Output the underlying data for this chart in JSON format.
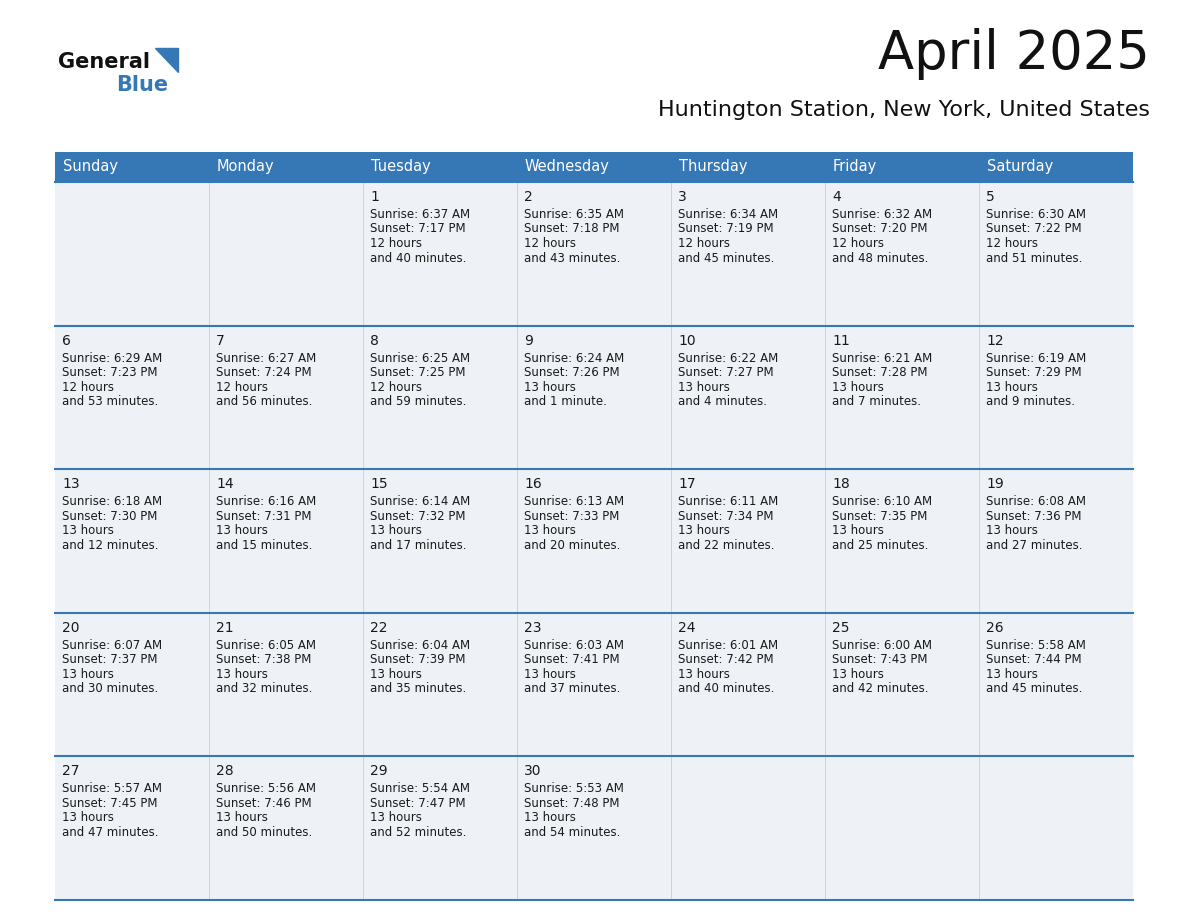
{
  "title": "April 2025",
  "subtitle": "Huntington Station, New York, United States",
  "header_color": "#3578b5",
  "header_text_color": "#ffffff",
  "cell_bg_even": "#eef2f7",
  "cell_bg_odd": "#ffffff",
  "border_color": "#3578b5",
  "text_color": "#1a1a1a",
  "day_names": [
    "Sunday",
    "Monday",
    "Tuesday",
    "Wednesday",
    "Thursday",
    "Friday",
    "Saturday"
  ],
  "weeks": [
    [
      {
        "day": "",
        "sunrise": "",
        "sunset": "",
        "daylight": ""
      },
      {
        "day": "",
        "sunrise": "",
        "sunset": "",
        "daylight": ""
      },
      {
        "day": "1",
        "sunrise": "6:37 AM",
        "sunset": "7:17 PM",
        "daylight": "12 hours\nand 40 minutes."
      },
      {
        "day": "2",
        "sunrise": "6:35 AM",
        "sunset": "7:18 PM",
        "daylight": "12 hours\nand 43 minutes."
      },
      {
        "day": "3",
        "sunrise": "6:34 AM",
        "sunset": "7:19 PM",
        "daylight": "12 hours\nand 45 minutes."
      },
      {
        "day": "4",
        "sunrise": "6:32 AM",
        "sunset": "7:20 PM",
        "daylight": "12 hours\nand 48 minutes."
      },
      {
        "day": "5",
        "sunrise": "6:30 AM",
        "sunset": "7:22 PM",
        "daylight": "12 hours\nand 51 minutes."
      }
    ],
    [
      {
        "day": "6",
        "sunrise": "6:29 AM",
        "sunset": "7:23 PM",
        "daylight": "12 hours\nand 53 minutes."
      },
      {
        "day": "7",
        "sunrise": "6:27 AM",
        "sunset": "7:24 PM",
        "daylight": "12 hours\nand 56 minutes."
      },
      {
        "day": "8",
        "sunrise": "6:25 AM",
        "sunset": "7:25 PM",
        "daylight": "12 hours\nand 59 minutes."
      },
      {
        "day": "9",
        "sunrise": "6:24 AM",
        "sunset": "7:26 PM",
        "daylight": "13 hours\nand 1 minute."
      },
      {
        "day": "10",
        "sunrise": "6:22 AM",
        "sunset": "7:27 PM",
        "daylight": "13 hours\nand 4 minutes."
      },
      {
        "day": "11",
        "sunrise": "6:21 AM",
        "sunset": "7:28 PM",
        "daylight": "13 hours\nand 7 minutes."
      },
      {
        "day": "12",
        "sunrise": "6:19 AM",
        "sunset": "7:29 PM",
        "daylight": "13 hours\nand 9 minutes."
      }
    ],
    [
      {
        "day": "13",
        "sunrise": "6:18 AM",
        "sunset": "7:30 PM",
        "daylight": "13 hours\nand 12 minutes."
      },
      {
        "day": "14",
        "sunrise": "6:16 AM",
        "sunset": "7:31 PM",
        "daylight": "13 hours\nand 15 minutes."
      },
      {
        "day": "15",
        "sunrise": "6:14 AM",
        "sunset": "7:32 PM",
        "daylight": "13 hours\nand 17 minutes."
      },
      {
        "day": "16",
        "sunrise": "6:13 AM",
        "sunset": "7:33 PM",
        "daylight": "13 hours\nand 20 minutes."
      },
      {
        "day": "17",
        "sunrise": "6:11 AM",
        "sunset": "7:34 PM",
        "daylight": "13 hours\nand 22 minutes."
      },
      {
        "day": "18",
        "sunrise": "6:10 AM",
        "sunset": "7:35 PM",
        "daylight": "13 hours\nand 25 minutes."
      },
      {
        "day": "19",
        "sunrise": "6:08 AM",
        "sunset": "7:36 PM",
        "daylight": "13 hours\nand 27 minutes."
      }
    ],
    [
      {
        "day": "20",
        "sunrise": "6:07 AM",
        "sunset": "7:37 PM",
        "daylight": "13 hours\nand 30 minutes."
      },
      {
        "day": "21",
        "sunrise": "6:05 AM",
        "sunset": "7:38 PM",
        "daylight": "13 hours\nand 32 minutes."
      },
      {
        "day": "22",
        "sunrise": "6:04 AM",
        "sunset": "7:39 PM",
        "daylight": "13 hours\nand 35 minutes."
      },
      {
        "day": "23",
        "sunrise": "6:03 AM",
        "sunset": "7:41 PM",
        "daylight": "13 hours\nand 37 minutes."
      },
      {
        "day": "24",
        "sunrise": "6:01 AM",
        "sunset": "7:42 PM",
        "daylight": "13 hours\nand 40 minutes."
      },
      {
        "day": "25",
        "sunrise": "6:00 AM",
        "sunset": "7:43 PM",
        "daylight": "13 hours\nand 42 minutes."
      },
      {
        "day": "26",
        "sunrise": "5:58 AM",
        "sunset": "7:44 PM",
        "daylight": "13 hours\nand 45 minutes."
      }
    ],
    [
      {
        "day": "27",
        "sunrise": "5:57 AM",
        "sunset": "7:45 PM",
        "daylight": "13 hours\nand 47 minutes."
      },
      {
        "day": "28",
        "sunrise": "5:56 AM",
        "sunset": "7:46 PM",
        "daylight": "13 hours\nand 50 minutes."
      },
      {
        "day": "29",
        "sunrise": "5:54 AM",
        "sunset": "7:47 PM",
        "daylight": "13 hours\nand 52 minutes."
      },
      {
        "day": "30",
        "sunrise": "5:53 AM",
        "sunset": "7:48 PM",
        "daylight": "13 hours\nand 54 minutes."
      },
      {
        "day": "",
        "sunrise": "",
        "sunset": "",
        "daylight": ""
      },
      {
        "day": "",
        "sunrise": "",
        "sunset": "",
        "daylight": ""
      },
      {
        "day": "",
        "sunrise": "",
        "sunset": "",
        "daylight": ""
      }
    ]
  ]
}
